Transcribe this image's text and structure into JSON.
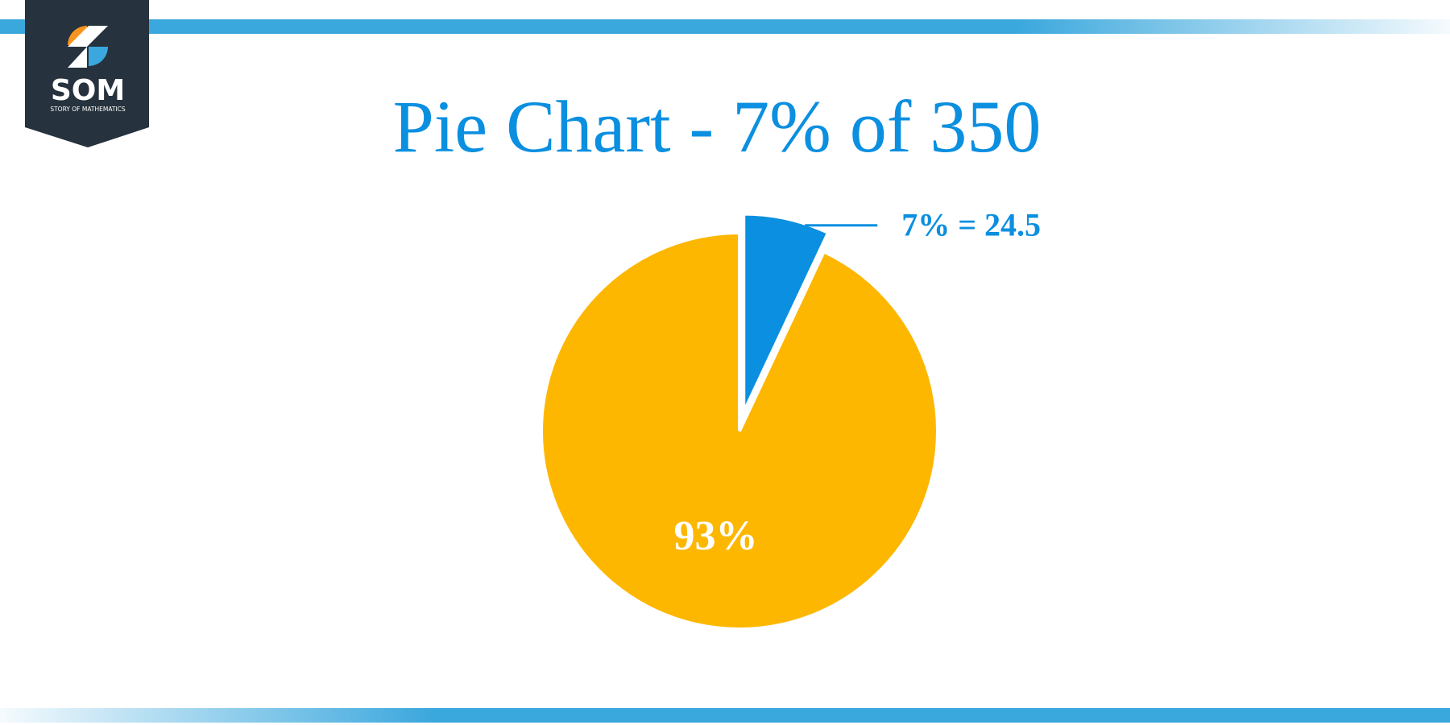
{
  "logo": {
    "name": "SOM",
    "tagline": "STORY OF MATHEMATICS"
  },
  "chart_data": {
    "type": "pie",
    "title": "Pie Chart - 7% of 350",
    "categories": [
      null,
      null
    ],
    "values": [
      7,
      93
    ],
    "value_labels": [
      "7% = 24.5",
      "93%"
    ],
    "colors": [
      "#0b8fe0",
      "#fdb700"
    ],
    "exploded": [
      true,
      false
    ]
  }
}
